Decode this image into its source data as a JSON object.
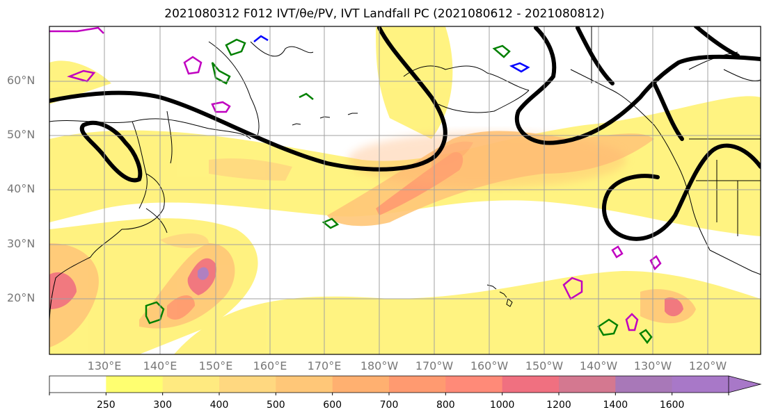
{
  "figure": {
    "title": "2021080312 F012 IVT/θe/PV, IVT Landfall PC (2021080612 - 2021080812)"
  },
  "map": {
    "lat_labels": [
      "60°N",
      "50°N",
      "40°N",
      "30°N",
      "20°N"
    ],
    "lon_labels": [
      "130°E",
      "140°E",
      "150°E",
      "160°E",
      "170°E",
      "180°W",
      "170°W",
      "160°W",
      "150°W",
      "140°W",
      "130°W",
      "120°W"
    ],
    "colors": {
      "ocean": "#ffffff",
      "coast": "#000000",
      "grid": "#a0a0a0",
      "landfall_pc": "#000000",
      "theta_e": "#008000",
      "pv": "#c000c0",
      "neg_contour": "#0000ff"
    }
  },
  "colorbar": {
    "levels": [
      "250",
      "300",
      "400",
      "500",
      "600",
      "700",
      "800",
      "1000",
      "1200",
      "1400",
      "1600"
    ],
    "colors": [
      "#ffffff",
      "#ffff70",
      "#ffea80",
      "#ffd880",
      "#ffc778",
      "#ffb070",
      "#ff9a70",
      "#ff8a78",
      "#f07080",
      "#d47890",
      "#a878b8",
      "#a878c8"
    ]
  }
}
